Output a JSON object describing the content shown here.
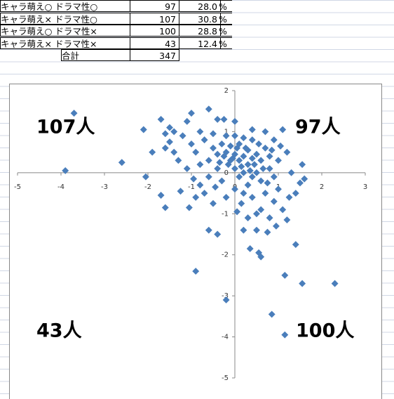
{
  "table": {
    "rows": [
      {
        "label": "キャラ萌え○ ドラマ性○",
        "count": 97,
        "percent": "28.0",
        "unit": "%"
      },
      {
        "label": "キャラ萌え× ドラマ性○",
        "count": 107,
        "percent": "30.8",
        "unit": "%"
      },
      {
        "label": "キャラ萌え○ ドラマ性×",
        "count": 100,
        "percent": "28.8",
        "unit": "%"
      },
      {
        "label": "キャラ萌え× ドラマ性×",
        "count": 43,
        "percent": "12.4",
        "unit": "%"
      }
    ],
    "total": {
      "label": "合計",
      "count": 347
    }
  },
  "chart_data": {
    "type": "scatter",
    "color": "#4a7ebb",
    "annotations": [
      "107人",
      "97人",
      "43人",
      "100人"
    ],
    "xlim": [
      -5,
      3
    ],
    "ylim": [
      -5,
      2
    ],
    "xticks": [
      -5,
      -4,
      -3,
      -2,
      -1,
      0,
      1,
      2,
      3
    ],
    "yticks": [
      -5,
      -4,
      -3,
      -2,
      -1,
      0,
      1,
      2
    ],
    "x": [
      -3.7,
      -3.9,
      -2.6,
      2.3,
      1.55,
      1.15,
      1.15,
      0.85,
      -0.2,
      -0.9,
      0.6,
      0.55,
      1.4,
      0.35,
      -1.6,
      -1.7,
      -2.05,
      -2.1,
      -1.7,
      -1.5,
      -0.6,
      -0.25,
      -1.1,
      1.1,
      1.2,
      1.5,
      1.55,
      1.4,
      1.1,
      1.2,
      0.95,
      0.75,
      0.5,
      -0.5,
      -0.8,
      -1.05,
      -0.6,
      -0.4,
      0.2,
      0.05,
      -1.9,
      -1.6,
      -1.5,
      -1.4,
      -1.3,
      -1.2,
      -1.0,
      -0.9,
      -0.8,
      -0.8,
      -0.7,
      -0.6,
      -0.5,
      -0.5,
      -0.4,
      -0.4,
      -0.3,
      -0.3,
      -0.2,
      -0.2,
      -0.1,
      -0.1,
      0,
      0,
      0,
      0.1,
      0.1,
      0.1,
      0.2,
      0.2,
      0.2,
      0.3,
      0.3,
      0.3,
      0.4,
      0.4,
      0.4,
      0.5,
      0.5,
      0.6,
      0.6,
      0.7,
      0.7,
      0.8,
      0.8,
      0.9,
      0.9,
      1.0,
      1.0,
      0.6,
      0.4,
      0.2,
      0,
      -0.2,
      0.3,
      0.5,
      0.8,
      -0.6,
      -1.1,
      -0.9,
      -1.4,
      -1.0,
      -0.4,
      0.0,
      0.4,
      0.7,
      -0.7,
      -1.6,
      -0.15,
      0.05,
      0.15,
      -0.05,
      0.25,
      0.35,
      -0.25,
      0.55,
      0.65,
      0.75,
      0.45,
      -0.35,
      1.3,
      1.25,
      0.9,
      0.15,
      -0.45,
      -1.25,
      -0.95,
      1.6,
      0.85,
      1.05
    ],
    "values": [
      1.45,
      0.05,
      0.25,
      -2.7,
      -2.7,
      -2.5,
      -3.95,
      -3.45,
      -3.1,
      -2.4,
      -2.05,
      -1.95,
      -1.75,
      -1.85,
      -0.85,
      -0.55,
      -0.1,
      1.05,
      1.3,
      1.1,
      1.55,
      1.3,
      1.25,
      1.05,
      0.5,
      -0.25,
      0.2,
      -0.5,
      -0.9,
      -1.15,
      -1.3,
      -1.45,
      -1.4,
      -0.75,
      -0.3,
      -0.85,
      -1.4,
      -1.5,
      -1.4,
      -0.95,
      0.5,
      0.6,
      0.75,
      0.5,
      0.3,
      0.9,
      0.7,
      0.5,
      1.0,
      0.2,
      0.8,
      0.3,
      0.6,
      0.95,
      0.1,
      0.45,
      0.7,
      -0.2,
      0.5,
      0.9,
      0.3,
      0.65,
      0.1,
      0.45,
      0.9,
      -0.1,
      0.3,
      0.7,
      0.0,
      0.4,
      0.85,
      -0.3,
      0.2,
      0.55,
      -0.1,
      0.35,
      0.8,
      0.0,
      0.45,
      -0.2,
      0.3,
      0.6,
      -0.5,
      0.1,
      0.4,
      -0.1,
      0.8,
      0.3,
      -0.4,
      -0.9,
      -0.6,
      -0.5,
      -0.4,
      -0.6,
      -1.1,
      -1.0,
      -1.1,
      -0.1,
      0.1,
      -0.6,
      1.0,
      1.45,
      1.3,
      1.25,
      1.05,
      1.0,
      -0.5,
      0.95,
      0.2,
      0.6,
      0.15,
      0.35,
      0.6,
      0.05,
      0.4,
      0.7,
      0.1,
      -0.25,
      0.2,
      0.25,
      0.0,
      -0.6,
      -0.7,
      -0.75,
      -0.35,
      -0.45,
      -0.15,
      -0.15,
      0.55,
      0.65
    ]
  }
}
